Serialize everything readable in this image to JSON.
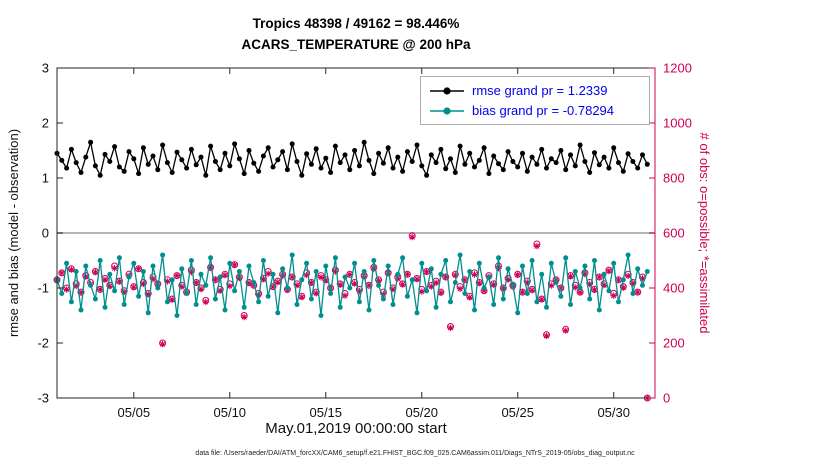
{
  "header": {
    "title_line1": "Tropics 48398 / 49162 = 98.446%",
    "title_line2": "ACARS_TEMPERATURE @ 200 hPa"
  },
  "footer": {
    "data_file": "data file: /Users/raeder/DAI/ATM_forcXX/CAM6_setup/f.e21.FHIST_BGC.f09_025.CAM6assim.011/Diags_NTrS_2019-05/obs_diag_output.nc"
  },
  "colors": {
    "rmse": "#000000",
    "bias": "#008f8f",
    "obs": "#d10056",
    "zero_line": "#b5b5b5",
    "axis": "#262626",
    "legend_text": "#0000ee"
  },
  "chart_data": {
    "type": "line",
    "title": "Tropics 48398 / 49162 = 98.446%",
    "subtitle": "ACARS_TEMPERATURE @ 200 hPa",
    "xlabel": "May.01,2019 00:00:00 start",
    "ylabel_left": "rmse and bias (model - observation)",
    "ylabel_right": "# of obs: o=possible; *=assimilated",
    "ylim_left": [
      -3,
      3
    ],
    "ylim_right": [
      0,
      1200
    ],
    "xlim_days": [
      0,
      31.15
    ],
    "y_ticks_left": [
      -3,
      -2,
      -1,
      0,
      1,
      2,
      3
    ],
    "y_ticks_right": [
      0,
      200,
      400,
      600,
      800,
      1000,
      1200
    ],
    "x_ticks": {
      "days": [
        4,
        9,
        14,
        19,
        24,
        29
      ],
      "labels": [
        "05/05",
        "05/10",
        "05/15",
        "05/20",
        "05/25",
        "05/30"
      ]
    },
    "grid": false,
    "x_start_day": 0,
    "x_step_days": 0.25,
    "legend": [
      {
        "series": "rmse",
        "label": "rmse grand pr = 1.2339"
      },
      {
        "series": "bias",
        "label": "bias grand pr = -0.78294"
      }
    ],
    "series": [
      {
        "name": "rmse",
        "axis": "left",
        "marker": "dot",
        "values": [
          1.45,
          1.32,
          1.18,
          1.52,
          1.28,
          1.1,
          1.38,
          1.65,
          1.22,
          1.05,
          1.43,
          1.3,
          1.57,
          1.2,
          1.12,
          1.48,
          1.35,
          1.08,
          1.55,
          1.25,
          1.4,
          1.15,
          1.6,
          1.28,
          1.1,
          1.47,
          1.33,
          1.18,
          1.52,
          1.24,
          1.38,
          1.05,
          1.58,
          1.3,
          1.15,
          1.45,
          1.22,
          1.62,
          1.35,
          1.08,
          1.5,
          1.27,
          1.12,
          1.4,
          1.55,
          1.2,
          1.33,
          1.48,
          1.15,
          1.62,
          1.3,
          1.05,
          1.44,
          1.25,
          1.53,
          1.18,
          1.36,
          1.1,
          1.58,
          1.28,
          1.42,
          1.15,
          1.5,
          1.22,
          1.65,
          1.32,
          1.08,
          1.45,
          1.27,
          1.55,
          1.18,
          1.38,
          1.12,
          1.48,
          1.3,
          1.6,
          1.22,
          1.05,
          1.42,
          1.28,
          1.52,
          1.17,
          1.35,
          1.1,
          1.58,
          1.25,
          1.45,
          1.2,
          1.32,
          1.55,
          1.08,
          1.4,
          1.26,
          1.15,
          1.48,
          1.3,
          1.2,
          1.45,
          1.12,
          1.38,
          1.25,
          1.52,
          1.18,
          1.35,
          1.28,
          1.5,
          1.15,
          1.42,
          1.22,
          1.6,
          1.3,
          1.1,
          1.46,
          1.24,
          1.38,
          1.18,
          1.55,
          1.28,
          1.12,
          1.44,
          1.3,
          1.18,
          1.42,
          1.25
        ]
      },
      {
        "name": "bias",
        "axis": "left",
        "marker": "dot",
        "values": [
          -0.85,
          -1.1,
          -0.55,
          -1.25,
          -0.7,
          -1.4,
          -0.6,
          -0.95,
          -1.2,
          -0.5,
          -1.35,
          -0.75,
          -1.05,
          -0.45,
          -1.3,
          -0.8,
          -0.55,
          -1.15,
          -0.7,
          -1.45,
          -0.6,
          -1.0,
          -0.4,
          -1.25,
          -0.85,
          -1.5,
          -0.65,
          -1.1,
          -0.5,
          -1.3,
          -0.75,
          -0.95,
          -0.45,
          -1.2,
          -0.8,
          -1.4,
          -0.55,
          -1.05,
          -0.7,
          -1.35,
          -0.6,
          -0.9,
          -1.25,
          -0.5,
          -1.15,
          -0.75,
          -1.45,
          -0.65,
          -1.0,
          -0.4,
          -1.3,
          -0.85,
          -0.55,
          -1.2,
          -0.7,
          -1.5,
          -0.6,
          -1.1,
          -0.45,
          -1.35,
          -0.8,
          -1.0,
          -0.55,
          -1.25,
          -0.7,
          -1.4,
          -0.5,
          -0.95,
          -1.2,
          -0.6,
          -1.3,
          -0.75,
          -0.45,
          -1.15,
          -0.85,
          -1.45,
          -0.55,
          -1.05,
          -0.65,
          -1.35,
          -0.75,
          -0.5,
          -1.25,
          -0.9,
          -0.4,
          -1.1,
          -0.7,
          -1.4,
          -0.55,
          -1.0,
          -0.8,
          -1.3,
          -0.45,
          -1.2,
          -0.65,
          -0.95,
          -1.45,
          -0.6,
          -1.1,
          -0.5,
          -1.25,
          -0.75,
          -1.35,
          -0.55,
          -0.9,
          -1.15,
          -0.45,
          -1.3,
          -0.7,
          -1.0,
          -0.6,
          -1.2,
          -0.5,
          -1.4,
          -0.75,
          -1.05,
          -0.55,
          -1.25,
          -0.85,
          -0.4,
          -1.1,
          -0.65,
          -0.95,
          -0.7
        ]
      },
      {
        "name": "possible",
        "axis": "right",
        "marker": "o",
        "values": [
          430,
          455,
          400,
          470,
          415,
          385,
          445,
          420,
          460,
          395,
          435,
          410,
          480,
          425,
          390,
          450,
          405,
          470,
          420,
          380,
          440,
          415,
          200,
          430,
          360,
          445,
          410,
          385,
          465,
          420,
          400,
          355,
          475,
          430,
          395,
          450,
          415,
          485,
          440,
          300,
          420,
          410,
          380,
          435,
          460,
          405,
          425,
          450,
          395,
          440,
          415,
          370,
          455,
          420,
          385,
          445,
          430,
          400,
          465,
          415,
          380,
          450,
          420,
          395,
          445,
          410,
          475,
          430,
          385,
          455,
          400,
          440,
          415,
          450,
          590,
          435,
          395,
          460,
          410,
          425,
          385,
          440,
          260,
          450,
          405,
          430,
          370,
          455,
          420,
          390,
          445,
          415,
          480,
          400,
          435,
          410,
          450,
          385,
          425,
          395,
          560,
          360,
          230,
          415,
          430,
          400,
          250,
          445,
          410,
          385,
          455,
          420,
          395,
          440,
          415,
          465,
          380,
          430,
          405,
          450,
          420,
          385,
          440,
          0
        ]
      },
      {
        "name": "assimilated",
        "axis": "right",
        "marker": "*",
        "values": [
          428,
          455,
          395,
          467,
          407,
          384,
          441,
          414,
          458,
          395,
          430,
          407,
          472,
          424,
          386,
          444,
          403,
          470,
          415,
          377,
          432,
          414,
          196,
          424,
          358,
          445,
          405,
          382,
          457,
          419,
          396,
          349,
          473,
          430,
          390,
          447,
          407,
          484,
          436,
          294,
          418,
          410,
          375,
          432,
          452,
          404,
          421,
          444,
          393,
          440,
          410,
          367,
          447,
          419,
          381,
          439,
          428,
          400,
          460,
          412,
          372,
          449,
          416,
          389,
          443,
          410,
          470,
          427,
          377,
          454,
          396,
          434,
          413,
          450,
          585,
          432,
          387,
          459,
          406,
          419,
          383,
          440,
          255,
          447,
          397,
          429,
          366,
          449,
          418,
          390,
          440,
          412,
          472,
          399,
          431,
          404,
          448,
          385,
          420,
          392,
          552,
          359,
          226,
          409,
          428,
          400,
          245,
          442,
          402,
          384,
          451,
          414,
          393,
          440,
          410,
          462,
          372,
          429,
          401,
          444,
          418,
          385,
          435,
          0
        ]
      }
    ]
  }
}
